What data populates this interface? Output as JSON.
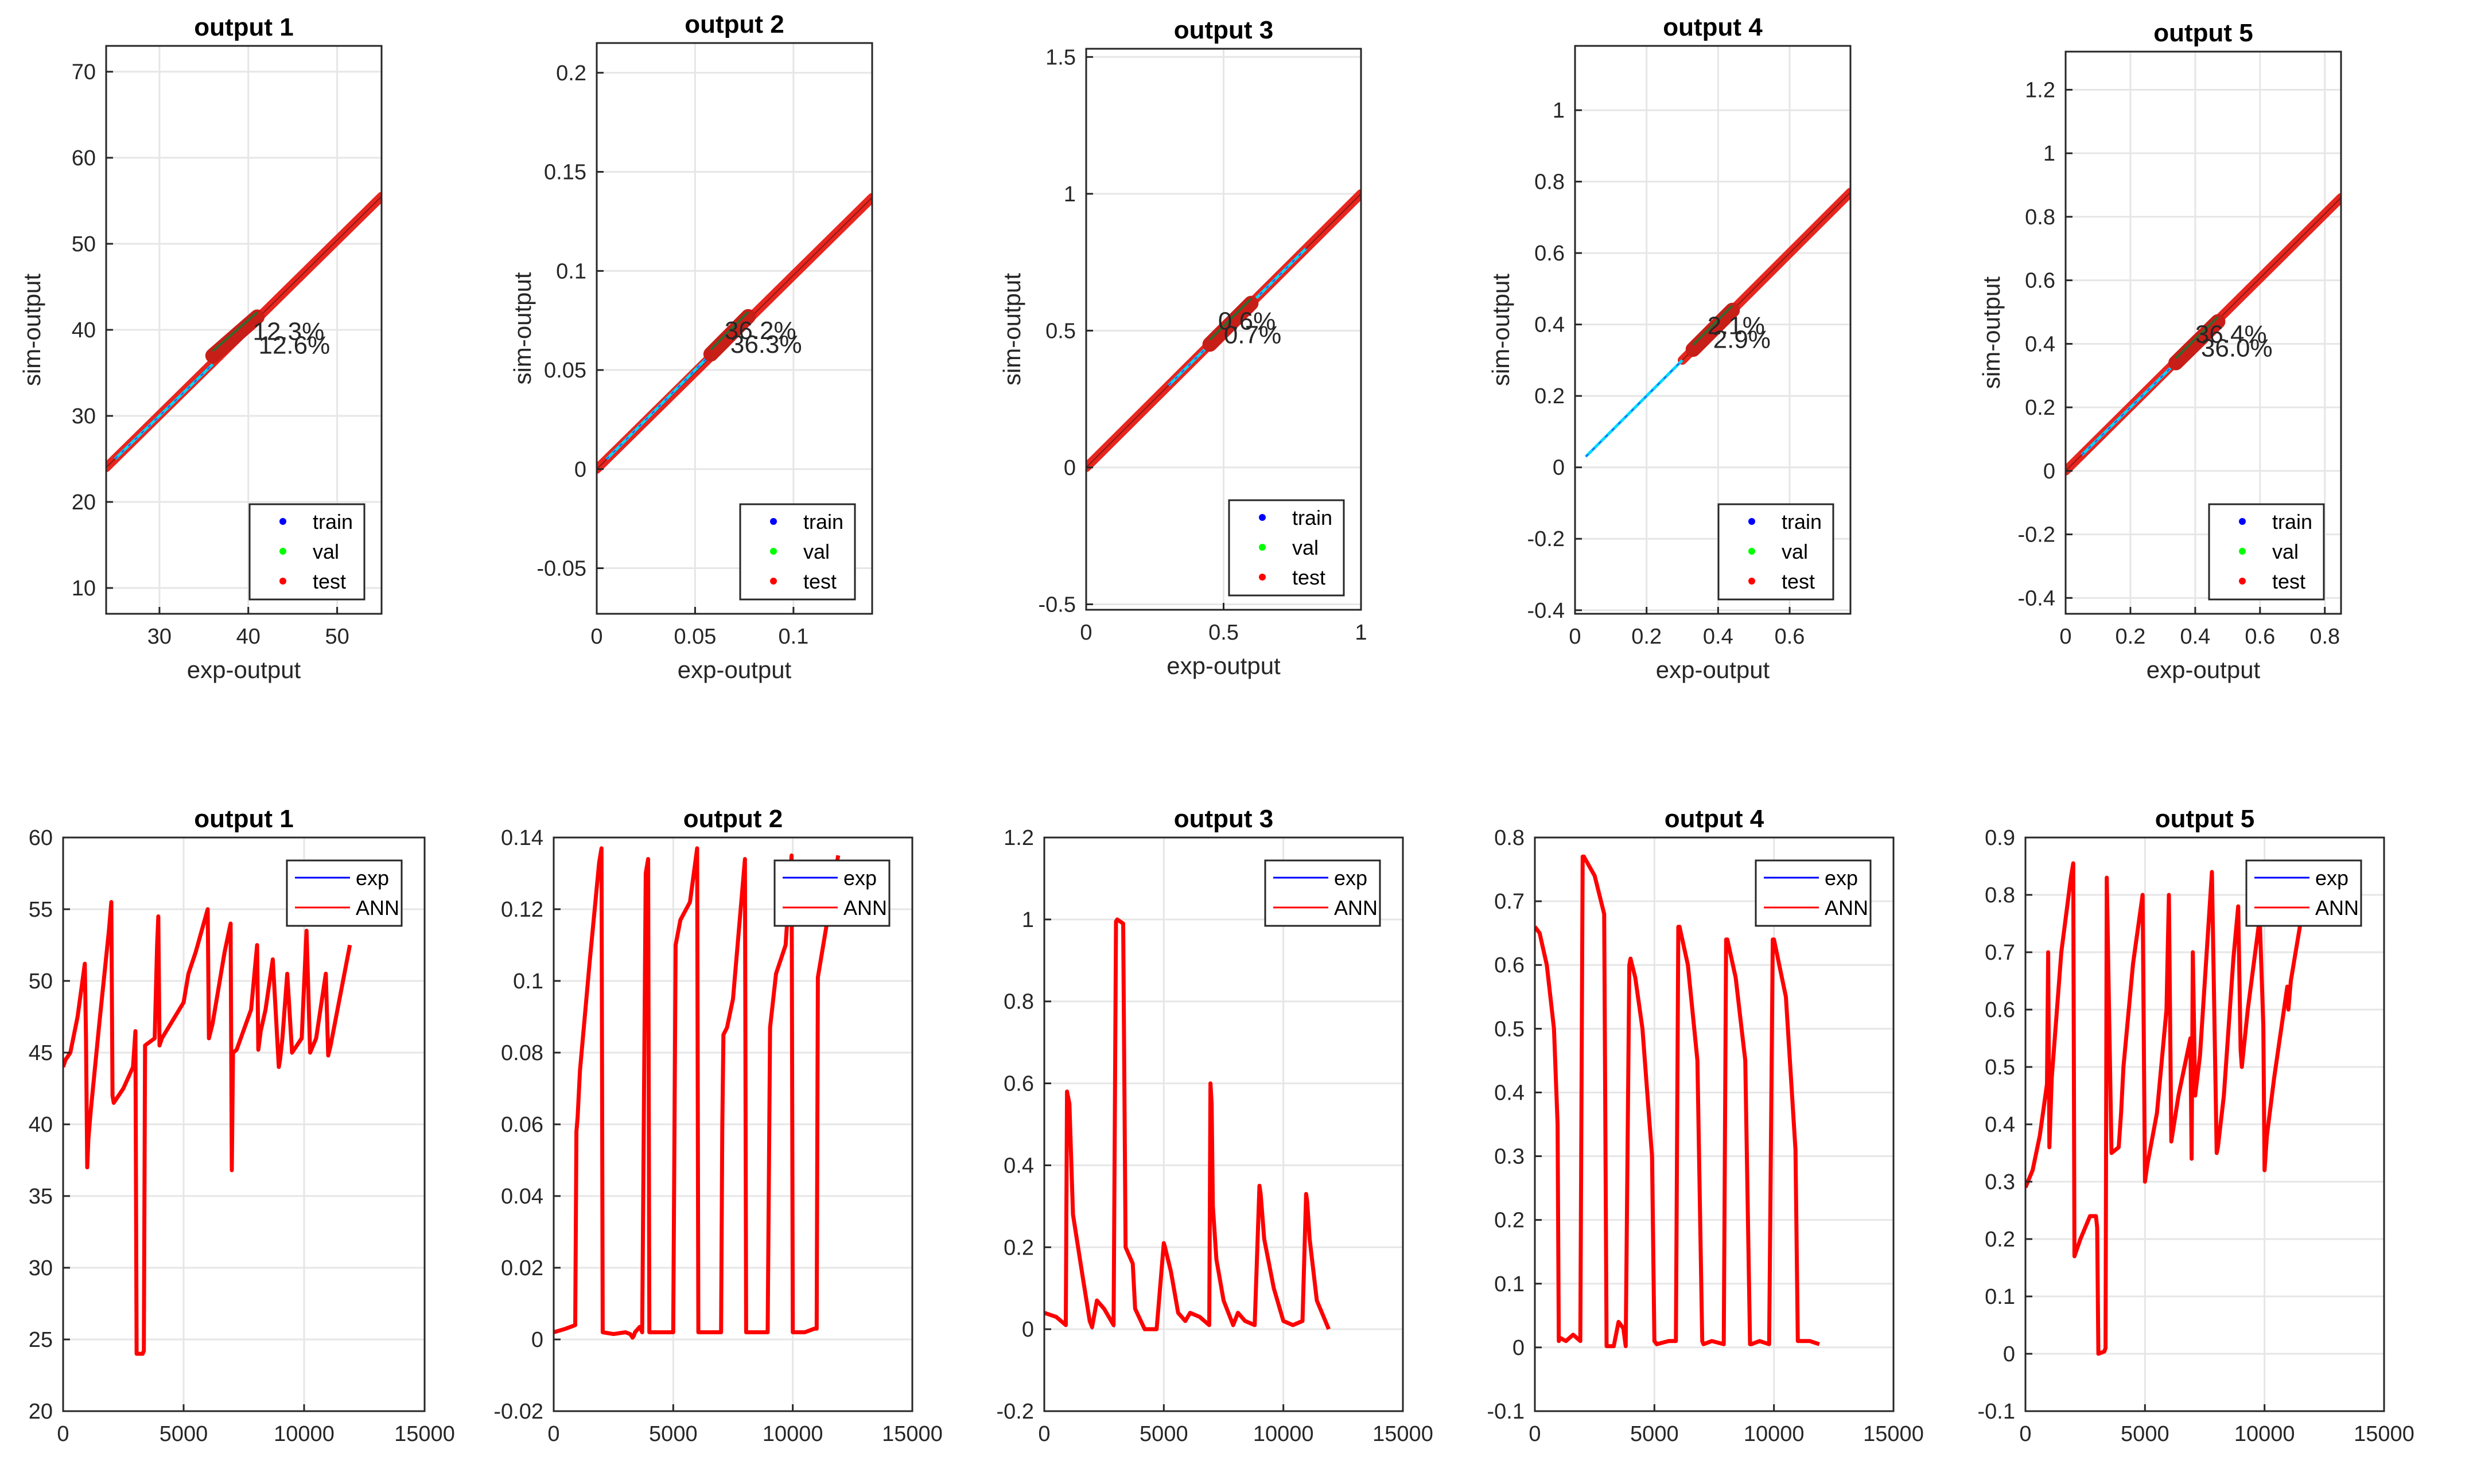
{
  "figure_title": "",
  "chart_data": [
    {
      "type": "scatter",
      "title": "output 1",
      "xlabel": "exp-output",
      "ylabel": "sim-output",
      "xlim": [
        24,
        55
      ],
      "ylim": [
        7,
        73
      ],
      "xticks": [
        30,
        40,
        50
      ],
      "yticks": [
        10,
        20,
        30,
        40,
        50,
        60,
        70
      ],
      "legend": [
        "train",
        "val",
        "test"
      ],
      "legend_colors": [
        "#0000ff",
        "#00ff00",
        "#ff0000"
      ],
      "legend_position": "bottom-right",
      "annotations": [
        "12.3%",
        "12.6%"
      ],
      "annotation_at": [
        40.5,
        38.7
      ],
      "fit_line": [
        [
          24,
          24
        ],
        [
          55,
          55.5
        ]
      ],
      "cluster": [
        [
          36,
          37
        ],
        [
          41,
          41.5
        ]
      ],
      "train_segment": [
        [
          25,
          25
        ],
        [
          36,
          36
        ]
      ],
      "grid": true
    },
    {
      "type": "scatter",
      "title": "output 2",
      "xlabel": "exp-output",
      "ylabel": "sim-output",
      "xlim": [
        0,
        0.14
      ],
      "ylim": [
        -0.073,
        0.215
      ],
      "xticks": [
        0,
        0.05,
        0.1
      ],
      "yticks": [
        -0.05,
        0,
        0.05,
        0.1,
        0.15,
        0.2
      ],
      "legend": [
        "train",
        "val",
        "test"
      ],
      "legend_colors": [
        "#0000ff",
        "#00ff00",
        "#ff0000"
      ],
      "legend_position": "bottom-right",
      "annotations": [
        "36.2%",
        "36.3%"
      ],
      "annotation_at": [
        0.065,
        0.065
      ],
      "fit_line": [
        [
          0,
          0
        ],
        [
          0.14,
          0.137
        ]
      ],
      "cluster": [
        [
          0.058,
          0.058
        ],
        [
          0.077,
          0.077
        ]
      ],
      "train_segment": [
        [
          0.005,
          0.005
        ],
        [
          0.058,
          0.058
        ]
      ],
      "grid": true
    },
    {
      "type": "scatter",
      "title": "output 3",
      "xlabel": "exp-output",
      "ylabel": "sim-output",
      "xlim": [
        0,
        1
      ],
      "ylim": [
        -0.52,
        1.53
      ],
      "xticks": [
        0,
        0.5,
        1
      ],
      "yticks": [
        -0.5,
        0,
        0.5,
        1,
        1.5
      ],
      "legend": [
        "train",
        "val",
        "test"
      ],
      "legend_colors": [
        "#0000ff",
        "#00ff00",
        "#ff0000"
      ],
      "legend_position": "bottom-right",
      "annotations": [
        "0.6%",
        "0.7%"
      ],
      "annotation_at": [
        0.48,
        0.5
      ],
      "fit_line": [
        [
          0,
          0
        ],
        [
          1,
          1
        ]
      ],
      "cluster": [
        [
          0.45,
          0.45
        ],
        [
          0.6,
          0.6
        ]
      ],
      "train_segment": [
        [
          0.3,
          0.3
        ],
        [
          0.8,
          0.8
        ]
      ],
      "grid": true
    },
    {
      "type": "scatter",
      "title": "output 4",
      "xlabel": "exp-output",
      "ylabel": "sim-output",
      "xlim": [
        0,
        0.77
      ],
      "ylim": [
        -0.41,
        1.18
      ],
      "xticks": [
        0,
        0.2,
        0.4,
        0.6
      ],
      "yticks": [
        -0.4,
        -0.2,
        0,
        0.2,
        0.4,
        0.6,
        0.8,
        1
      ],
      "legend": [
        "train",
        "val",
        "test"
      ],
      "legend_colors": [
        "#0000ff",
        "#00ff00",
        "#ff0000"
      ],
      "legend_position": "bottom-right",
      "annotations": [
        "2.1%",
        "2.9%"
      ],
      "annotation_at": [
        0.37,
        0.37
      ],
      "fit_line": [
        [
          0.3,
          0.3
        ],
        [
          0.77,
          0.77
        ]
      ],
      "cluster": [
        [
          0.33,
          0.33
        ],
        [
          0.44,
          0.44
        ]
      ],
      "train_segment": [
        [
          0.03,
          0.03
        ],
        [
          0.3,
          0.3
        ]
      ],
      "grid": true
    },
    {
      "type": "scatter",
      "title": "output 5",
      "xlabel": "exp-output",
      "ylabel": "sim-output",
      "xlim": [
        0,
        0.85
      ],
      "ylim": [
        -0.45,
        1.32
      ],
      "xticks": [
        0,
        0.2,
        0.4,
        0.6,
        0.8
      ],
      "yticks": [
        -0.4,
        -0.2,
        0,
        0.2,
        0.4,
        0.6,
        0.8,
        1,
        1.2
      ],
      "legend": [
        "train",
        "val",
        "test"
      ],
      "legend_colors": [
        "#0000ff",
        "#00ff00",
        "#ff0000"
      ],
      "legend_position": "bottom-right",
      "annotations": [
        "36.4%",
        "36.0%"
      ],
      "annotation_at": [
        0.4,
        0.4
      ],
      "fit_line": [
        [
          0,
          0
        ],
        [
          0.85,
          0.86
        ]
      ],
      "cluster": [
        [
          0.34,
          0.34
        ],
        [
          0.47,
          0.47
        ]
      ],
      "train_segment": [
        [
          0.05,
          0.05
        ],
        [
          0.34,
          0.34
        ]
      ],
      "grid": true
    },
    {
      "type": "line",
      "title": "output 1",
      "xlim": [
        0,
        15000
      ],
      "ylim": [
        20,
        60
      ],
      "xticks": [
        0,
        5000,
        10000,
        15000
      ],
      "yticks": [
        20,
        25,
        30,
        35,
        40,
        45,
        50,
        55,
        60
      ],
      "legend": [
        "exp",
        "ANN"
      ],
      "legend_colors": [
        "#0000ff",
        "#ff0000"
      ],
      "legend_position": "top-right",
      "series": [
        {
          "name": "ANN",
          "x": [
            0,
            100,
            300,
            600,
            900,
            950,
            1000,
            1050,
            1150,
            1500,
            1900,
            2000,
            2050,
            2100,
            2500,
            2900,
            3000,
            3050,
            3100,
            3300,
            3350,
            3400,
            3800,
            3900,
            3950,
            4000,
            4100,
            5000,
            5200,
            5500,
            6000,
            6050,
            6200,
            6700,
            6950,
            7000,
            7050,
            7200,
            7800,
            8050,
            8100,
            8200,
            8400,
            8700,
            8950,
            9000,
            9100,
            9300,
            9500,
            9900,
            10100,
            10250,
            10500,
            10900,
            11000,
            11100,
            11500,
            11900
          ],
          "y": [
            44,
            44.5,
            45,
            47.5,
            51.2,
            46,
            37,
            39,
            41,
            47,
            53.5,
            55.5,
            42,
            41.5,
            42.5,
            44,
            46.5,
            24,
            24,
            24,
            24.2,
            45.5,
            46,
            52.5,
            54.5,
            45.5,
            46,
            48.5,
            50.5,
            52,
            55,
            46,
            47,
            52,
            54,
            36.8,
            45,
            45.2,
            48,
            52.5,
            45.2,
            46.5,
            48,
            51.5,
            44,
            44.5,
            46,
            50.5,
            45,
            46,
            53.5,
            45,
            46,
            50.5,
            44.8,
            45.5,
            49,
            52.5
          ]
        }
      ],
      "grid": true
    },
    {
      "type": "line",
      "title": "output 2",
      "xlim": [
        0,
        15000
      ],
      "ylim": [
        -0.02,
        0.14
      ],
      "xticks": [
        0,
        5000,
        10000,
        15000
      ],
      "yticks": [
        -0.02,
        0,
        0.02,
        0.04,
        0.06,
        0.08,
        0.1,
        0.12,
        0.14
      ],
      "legend": [
        "exp",
        "ANN"
      ],
      "legend_colors": [
        "#0000ff",
        "#ff0000"
      ],
      "legend_position": "top-right",
      "series": [
        {
          "name": "ANN",
          "x": [
            0,
            500,
            900,
            950,
            1000,
            1100,
            1500,
            1900,
            2000,
            2050,
            2500,
            3000,
            3200,
            3300,
            3350,
            3400,
            3600,
            3700,
            3850,
            3950,
            4000,
            4100,
            4500,
            5000,
            5100,
            5300,
            5700,
            6000,
            6050,
            6500,
            6950,
            7000,
            7050,
            7100,
            7250,
            7500,
            8000,
            8050,
            8400,
            8900,
            8950,
            9050,
            9300,
            9700,
            9950,
            10000,
            10050,
            10500,
            10900,
            11000,
            11050,
            11400,
            11900
          ],
          "y": [
            0.002,
            0.003,
            0.004,
            0.058,
            0.062,
            0.075,
            0.105,
            0.133,
            0.137,
            0.002,
            0.0015,
            0.002,
            0.0015,
            0.0005,
            0.001,
            0.002,
            0.0035,
            0.002,
            0.13,
            0.134,
            0.002,
            0.002,
            0.002,
            0.002,
            0.11,
            0.117,
            0.122,
            0.137,
            0.002,
            0.002,
            0.002,
            0.002,
            0.059,
            0.085,
            0.087,
            0.095,
            0.134,
            0.002,
            0.002,
            0.002,
            0.002,
            0.087,
            0.102,
            0.11,
            0.135,
            0.002,
            0.002,
            0.002,
            0.003,
            0.003,
            0.101,
            0.115,
            0.135
          ]
        }
      ],
      "grid": true
    },
    {
      "type": "line",
      "title": "output 3",
      "xlim": [
        0,
        15000
      ],
      "ylim": [
        -0.2,
        1.2
      ],
      "xticks": [
        0,
        5000,
        10000,
        15000
      ],
      "yticks": [
        -0.2,
        0,
        0.2,
        0.4,
        0.6,
        0.8,
        1,
        1.2
      ],
      "legend": [
        "exp",
        "ANN"
      ],
      "legend_colors": [
        "#0000ff",
        "#ff0000"
      ],
      "legend_position": "top-right",
      "series": [
        {
          "name": "ANN",
          "x": [
            0,
            500,
            900,
            950,
            1050,
            1200,
            1600,
            1900,
            2000,
            2200,
            2500,
            2900,
            3000,
            3050,
            3300,
            3400,
            3700,
            3800,
            4200,
            4700,
            5000,
            5050,
            5300,
            5600,
            5900,
            6100,
            6500,
            6900,
            6950,
            7000,
            7050,
            7200,
            7500,
            7900,
            8100,
            8400,
            8800,
            9000,
            9050,
            9200,
            9600,
            10000,
            10400,
            10800,
            10950,
            11000,
            11100,
            11400,
            11900
          ],
          "y": [
            0.04,
            0.03,
            0.01,
            0.58,
            0.55,
            0.28,
            0.13,
            0.02,
            0.005,
            0.07,
            0.05,
            0.01,
            0.995,
            1,
            0.99,
            0.2,
            0.16,
            0.05,
            0,
            0,
            0.21,
            0.2,
            0.14,
            0.04,
            0.02,
            0.04,
            0.03,
            0.01,
            0.6,
            0.55,
            0.3,
            0.17,
            0.07,
            0.01,
            0.04,
            0.02,
            0.01,
            0.35,
            0.33,
            0.22,
            0.1,
            0.02,
            0.01,
            0.02,
            0.33,
            0.31,
            0.22,
            0.07,
            0
          ]
        }
      ],
      "grid": true
    },
    {
      "type": "line",
      "title": "output 4",
      "xlim": [
        0,
        15000
      ],
      "ylim": [
        -0.1,
        0.8
      ],
      "xticks": [
        0,
        5000,
        10000,
        15000
      ],
      "yticks": [
        -0.1,
        0,
        0.1,
        0.2,
        0.3,
        0.4,
        0.5,
        0.6,
        0.7,
        0.8
      ],
      "legend": [
        "exp",
        "ANN"
      ],
      "legend_colors": [
        "#0000ff",
        "#ff0000"
      ],
      "legend_position": "top-right",
      "series": [
        {
          "name": "ANN",
          "x": [
            0,
            200,
            500,
            800,
            950,
            1000,
            1050,
            1300,
            1600,
            1900,
            2000,
            2050,
            2500,
            2900,
            3000,
            3300,
            3500,
            3700,
            3800,
            3950,
            4000,
            4200,
            4500,
            4900,
            5000,
            5100,
            5600,
            5900,
            6000,
            6050,
            6400,
            6800,
            7000,
            7050,
            7400,
            7900,
            8000,
            8050,
            8400,
            8800,
            9000,
            9050,
            9400,
            9800,
            9950,
            10000,
            10500,
            10900,
            11000,
            11500,
            11900
          ],
          "y": [
            0.66,
            0.65,
            0.6,
            0.5,
            0.35,
            0.01,
            0.015,
            0.01,
            0.02,
            0.01,
            0.77,
            0.77,
            0.74,
            0.68,
            0.002,
            0.002,
            0.04,
            0.03,
            0.002,
            0.6,
            0.61,
            0.58,
            0.5,
            0.3,
            0.01,
            0.005,
            0.01,
            0.01,
            0.66,
            0.66,
            0.6,
            0.45,
            0.01,
            0.005,
            0.01,
            0.005,
            0.64,
            0.64,
            0.58,
            0.45,
            0.005,
            0.005,
            0.01,
            0.005,
            0.64,
            0.64,
            0.55,
            0.31,
            0.01,
            0.01,
            0.005
          ]
        }
      ],
      "grid": true
    },
    {
      "type": "line",
      "title": "output 5",
      "xlim": [
        0,
        15000
      ],
      "ylim": [
        -0.1,
        0.9
      ],
      "xticks": [
        0,
        5000,
        10000,
        15000
      ],
      "yticks": [
        -0.1,
        0,
        0.1,
        0.2,
        0.3,
        0.4,
        0.5,
        0.6,
        0.7,
        0.8,
        0.9
      ],
      "legend": [
        "exp",
        "ANN"
      ],
      "legend_colors": [
        "#0000ff",
        "#ff0000"
      ],
      "legend_position": "top-right",
      "series": [
        {
          "name": "ANN",
          "x": [
            0,
            300,
            600,
            900,
            950,
            1000,
            1100,
            1500,
            1900,
            2000,
            2050,
            2300,
            2700,
            2950,
            3000,
            3050,
            3300,
            3350,
            3400,
            3600,
            3900,
            4000,
            4100,
            4500,
            4900,
            5000,
            5100,
            5500,
            5900,
            6000,
            6100,
            6400,
            6900,
            6950,
            7000,
            7100,
            7300,
            7800,
            8000,
            8050,
            8300,
            8700,
            8900,
            9000,
            9050,
            9300,
            9800,
            9950,
            10000,
            10100,
            10400,
            10950,
            11000,
            11100,
            11500,
            11900
          ],
          "y": [
            0.29,
            0.32,
            0.38,
            0.47,
            0.7,
            0.36,
            0.48,
            0.7,
            0.83,
            0.855,
            0.17,
            0.2,
            0.24,
            0.24,
            0.22,
            0,
            0.004,
            0.01,
            0.83,
            0.35,
            0.36,
            0.42,
            0.5,
            0.68,
            0.8,
            0.3,
            0.33,
            0.42,
            0.6,
            0.8,
            0.37,
            0.45,
            0.55,
            0.34,
            0.7,
            0.45,
            0.52,
            0.84,
            0.35,
            0.36,
            0.45,
            0.69,
            0.78,
            0.53,
            0.5,
            0.6,
            0.76,
            0.57,
            0.32,
            0.38,
            0.48,
            0.64,
            0.6,
            0.65,
            0.75,
            0.78
          ]
        }
      ],
      "grid": true
    }
  ]
}
